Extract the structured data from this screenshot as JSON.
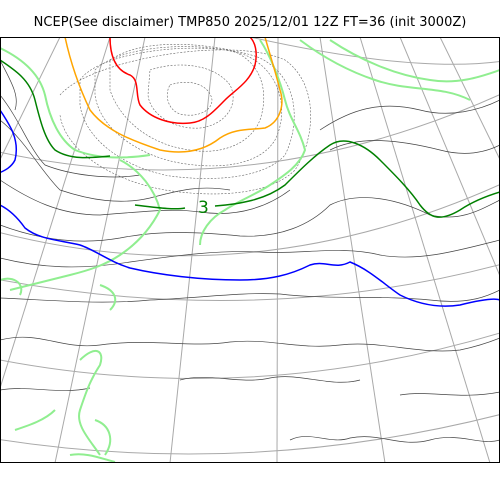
{
  "title": "NCEP(See disclaimer) TMP850 2025/12/01 12Z FT=36 (init 3000Z)",
  "contour_labels": [
    {
      "text": "3"
    }
  ],
  "colors": {
    "frame": "#000000",
    "graticule": "#a9a9a9",
    "minor_isotherm_dark": "#444444",
    "minor_isotherm_light": "#666666",
    "isotherm_light_green": "#90ee90",
    "isotherm_green": "#008000",
    "isotherm_blue": "#0000ff",
    "isotherm_orange": "#ffa500",
    "isotherm_red": "#ff0000"
  }
}
